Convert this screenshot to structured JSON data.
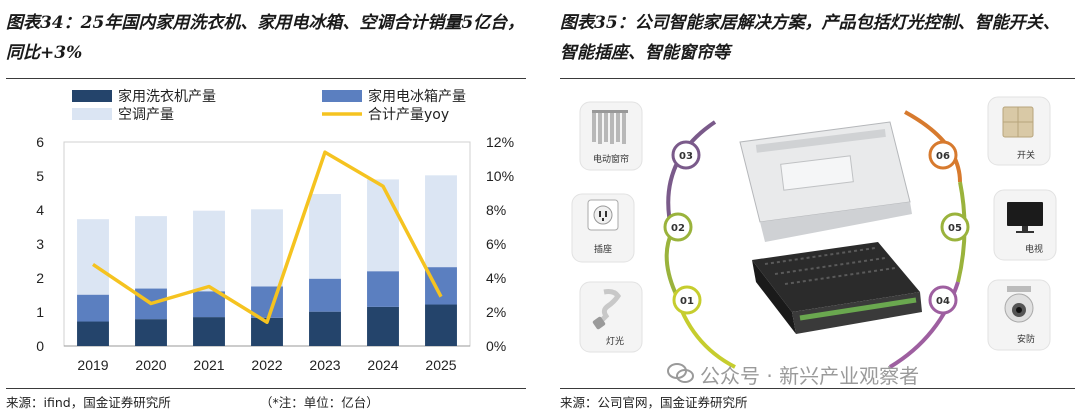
{
  "left_title": "图表34：25年国内家用洗衣机、家用电冰箱、空调合计销量5亿台，同比+3%",
  "right_title": "图表35：公司智能家居解决方案，产品包括灯光控制、智能开关、智能插座、智能窗帘等",
  "left_source": "来源：ifind，国金证券研究所",
  "left_note": "（*注：单位：亿台）",
  "right_source": "来源：公司官网，国金证券研究所",
  "watermark": "公众号 · 新兴产业观察者",
  "colors": {
    "washer": "#24446b",
    "fridge": "#5b7fc0",
    "ac": "#dbe5f3",
    "yoy": "#f5c320"
  },
  "chart_data": {
    "type": "bar",
    "stacked": true,
    "categories": [
      "2019",
      "2020",
      "2021",
      "2022",
      "2023",
      "2024",
      "2025"
    ],
    "series": [
      {
        "name": "家用洗衣机产量",
        "axis": "left",
        "values": [
          0.72,
          0.79,
          0.85,
          0.83,
          1.01,
          1.15,
          1.22
        ]
      },
      {
        "name": "家用电冰箱产量",
        "axis": "left",
        "values": [
          0.79,
          0.9,
          0.76,
          0.92,
          0.97,
          1.05,
          1.1
        ]
      },
      {
        "name": "空调产量",
        "axis": "left",
        "values": [
          2.22,
          2.13,
          2.37,
          2.27,
          2.49,
          2.7,
          2.7
        ]
      },
      {
        "name": "合计产量yoy",
        "type": "line",
        "axis": "right",
        "values": [
          4.8,
          2.5,
          3.5,
          1.4,
          11.4,
          9.4,
          2.9
        ]
      }
    ],
    "y_left": {
      "min": 0,
      "max": 6,
      "ticks": [
        "0",
        "1",
        "2",
        "3",
        "4",
        "5",
        "6"
      ]
    },
    "y_right": {
      "min": 0,
      "max": 12,
      "ticks": [
        "0%",
        "2%",
        "4%",
        "6%",
        "8%",
        "10%",
        "12%"
      ]
    },
    "legend_placement": "top",
    "grid": false
  },
  "smart_home": {
    "items": [
      {
        "num": "03",
        "label": "电动窗帘",
        "icon": "curtain-icon"
      },
      {
        "num": "02",
        "label": "插座",
        "icon": "socket-icon"
      },
      {
        "num": "01",
        "label": "灯光",
        "icon": "bulb-icon"
      },
      {
        "num": "06",
        "label": "开关",
        "icon": "switch-icon"
      },
      {
        "num": "05",
        "label": "电视",
        "icon": "tv-icon"
      },
      {
        "num": "04",
        "label": "安防",
        "icon": "camera-icon"
      }
    ]
  }
}
